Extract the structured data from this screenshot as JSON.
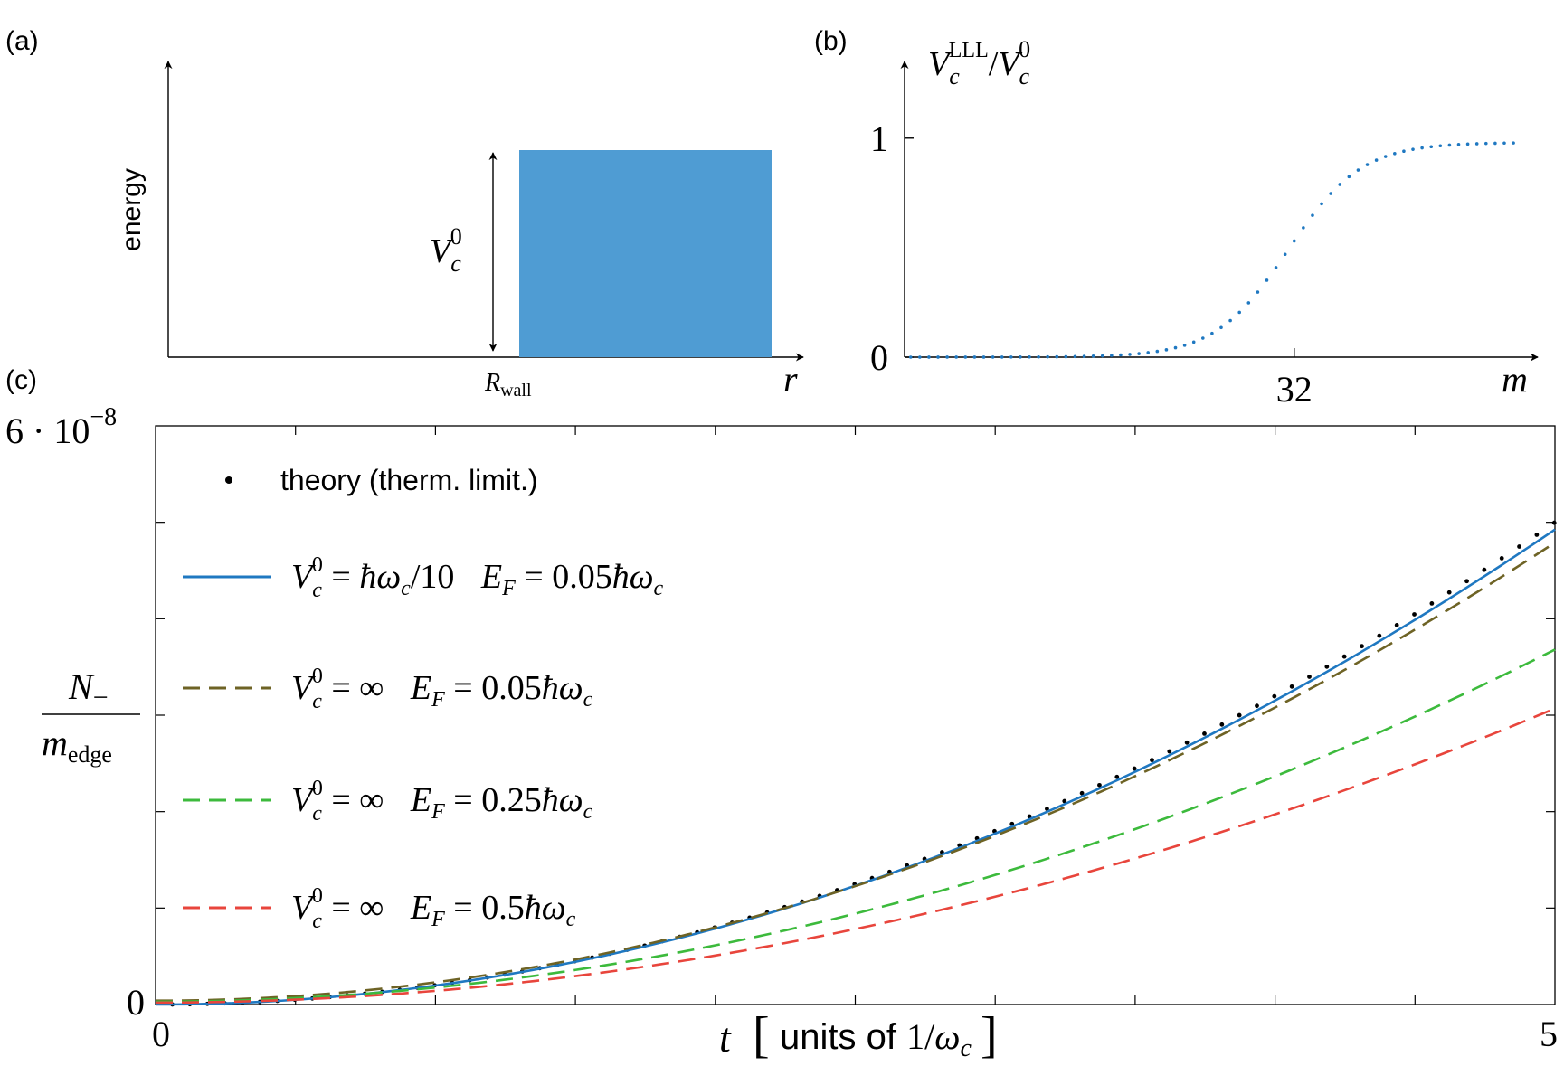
{
  "chart_data": [
    {
      "panel": "a",
      "type": "diagram",
      "panel_label": "(a)",
      "ylabel": "energy",
      "xlabel": "r",
      "marker_label": "R_wall",
      "barrier": {
        "label": "V_c^0",
        "color": "#4f9cd3",
        "x_start": 0.74,
        "x_end": 1.0,
        "height": 1.0
      }
    },
    {
      "panel": "b",
      "type": "scatter",
      "panel_label": "(b)",
      "ylabel": "V_c^LLL/V_c^0",
      "xlabel": "m",
      "xlim": [
        0,
        52
      ],
      "ylim": [
        0,
        1.35
      ],
      "xticks": [
        32
      ],
      "yticks": [
        0,
        1
      ],
      "color": "#1f78c1",
      "profile": {
        "center": 31.5,
        "width": 3.0,
        "plateau": 0.98,
        "m_start": 0.5,
        "m_end": 50.5,
        "step": 0.75
      }
    },
    {
      "panel": "c",
      "type": "line",
      "panel_label": "(c)",
      "xlabel_prefix": "t",
      "xlabel_unit": "units of 1/ω_c",
      "ylabel_num": "N_−",
      "ylabel_den": "m_edge",
      "xlim": [
        0,
        5
      ],
      "ylim": [
        0,
        6e-08
      ],
      "xtick_labels": [
        "0",
        "5"
      ],
      "ytick_labels": [
        "0",
        "6 · 10^−8"
      ],
      "minor_xticks": 10,
      "minor_yticks": 6,
      "series": [
        {
          "name": "theory (therm. limit.)",
          "style": "dotted",
          "color": "#000000",
          "coef": 2e-09,
          "offset": 0
        },
        {
          "name": "V_c^0 = ħω_c/10   E_F = 0.05ħω_c",
          "style": "solid",
          "color": "#1f78c1",
          "coef": 1.97e-09,
          "offset": 0
        },
        {
          "name": "V_c^0 = ∞   E_F = 0.05ħω_c",
          "style": "dashed",
          "color": "#6e6325",
          "coef": 1.9e-09,
          "offset": 4e-10
        },
        {
          "name": "V_c^0 = ∞   E_F = 0.25ħω_c",
          "style": "dashed",
          "color": "#3cba3c",
          "coef": 1.46e-09,
          "offset": 3e-10
        },
        {
          "name": "V_c^0 = ∞   E_F = 0.5ħω_c",
          "style": "dashed",
          "color": "#e8453c",
          "coef": 1.22e-09,
          "offset": 2e-10
        }
      ]
    }
  ]
}
